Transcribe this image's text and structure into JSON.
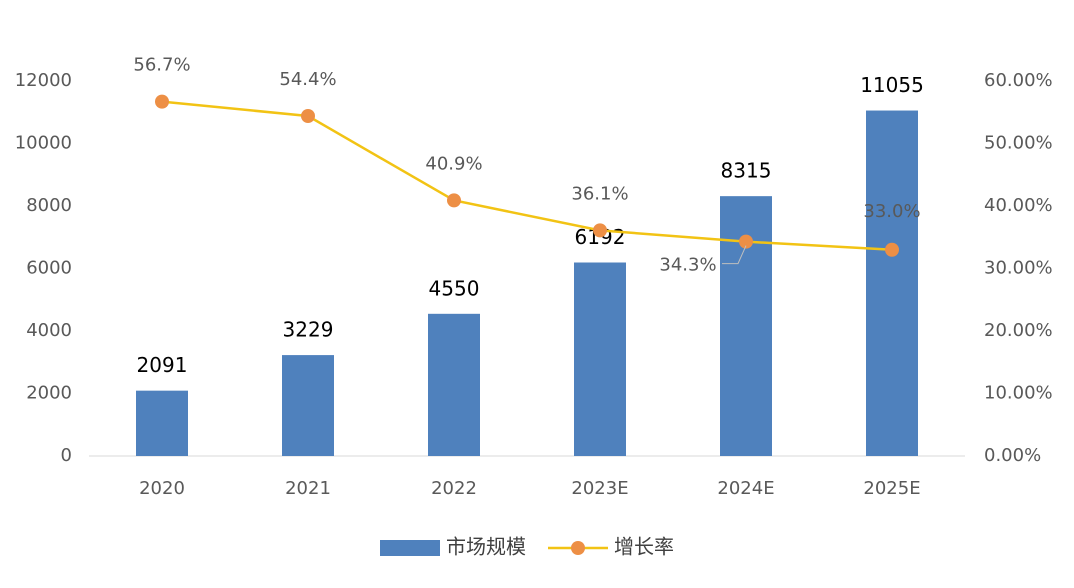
{
  "chart_data": {
    "type": "bar-line",
    "categories": [
      "2020",
      "2021",
      "2022",
      "2023E",
      "2024E",
      "2025E"
    ],
    "series": [
      {
        "name": "市场规模",
        "type": "bar",
        "color": "#4f81bd",
        "values": [
          2091,
          3229,
          4550,
          6192,
          8315,
          11055
        ]
      },
      {
        "name": "增长率",
        "type": "line",
        "axis": "y2",
        "color": "#f2c314",
        "marker_color": "#ed8f45",
        "values": [
          56.7,
          54.4,
          40.9,
          36.1,
          34.3,
          33.0
        ],
        "value_labels": [
          "56.7%",
          "54.4%",
          "40.9%",
          "36.1%",
          "34.3%",
          "33.0%"
        ]
      }
    ],
    "ylim": [
      0,
      12000
    ],
    "yticks": [
      0,
      2000,
      4000,
      6000,
      8000,
      10000,
      12000
    ],
    "y2lim": [
      0,
      60
    ],
    "y2ticks": [
      {
        "value": 0,
        "label": "0.00%"
      },
      {
        "value": 10,
        "label": "10.00%"
      },
      {
        "value": 20,
        "label": "20.00%"
      },
      {
        "value": 30,
        "label": "30.00%"
      },
      {
        "value": 40,
        "label": "40.00%"
      },
      {
        "value": 50,
        "label": "50.00%"
      },
      {
        "value": 60,
        "label": "60.00%"
      }
    ],
    "legend": "bottom"
  }
}
